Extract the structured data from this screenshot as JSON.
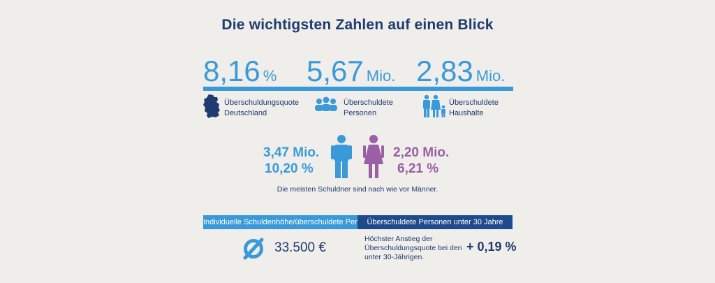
{
  "title": "Die wichtigsten Zahlen auf einen Blick",
  "stats": [
    {
      "value": "8,16",
      "unit": "%",
      "label_line1": "Überschuldungsquote",
      "label_line2": "Deutschland",
      "icon": "germany-map-icon"
    },
    {
      "value": "5,67",
      "unit": "Mio.",
      "label_line1": "Überschuldete",
      "label_line2": "Personen",
      "icon": "group-people-icon"
    },
    {
      "value": "2,83",
      "unit": "Mio.",
      "label_line1": "Überschuldete",
      "label_line2": "Haushalte",
      "icon": "family-icon"
    }
  ],
  "gender": {
    "male_count": "3,47 Mio.",
    "male_percent": "10,20 %",
    "female_count": "2,20 Mio.",
    "female_percent": "6,21 %",
    "note": "Die meisten Schuldner sind nach wie vor Männer."
  },
  "debt": {
    "header": "Individuelle Schuldenhöhe/überschuldete Person",
    "symbol": "Ø",
    "amount": "33.500 €"
  },
  "youth": {
    "header": "Überschuldete Personen unter 30 Jahre",
    "text_line1": "Höchster Anstieg der",
    "text_line2": "Überschuldungsquote bei den",
    "text_line3": "unter 30-Jährigen.",
    "value": "+ 0,19 %"
  },
  "colors": {
    "accent_blue": "#3a9ad9",
    "dark_blue": "#1f3b6f",
    "purple": "#9b5fa5",
    "background": "#efeeea"
  }
}
